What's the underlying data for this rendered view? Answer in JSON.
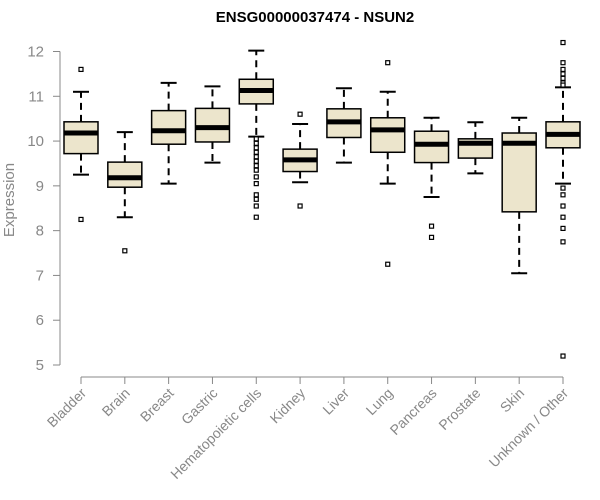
{
  "chart_data": {
    "type": "box",
    "title": "ENSG00000037474 - NSUN2",
    "ylabel": "Expression",
    "xlabel": "",
    "ylim": [
      5,
      12
    ],
    "yticks": [
      5,
      6,
      7,
      8,
      9,
      10,
      11,
      12
    ],
    "categories": [
      "Bladder",
      "Brain",
      "Breast",
      "Gastric",
      "Hematopoietic cells",
      "Kidney",
      "Liver",
      "Lung",
      "Pancreas",
      "Prostate",
      "Skin",
      "Unknown / Other"
    ],
    "series": [
      {
        "category": "Bladder",
        "whisker_low": 9.25,
        "q1": 9.72,
        "median": 10.18,
        "q3": 10.43,
        "whisker_high": 11.1,
        "outliers": [
          11.6,
          8.25
        ]
      },
      {
        "category": "Brain",
        "whisker_low": 8.3,
        "q1": 8.97,
        "median": 9.18,
        "q3": 9.53,
        "whisker_high": 10.2,
        "outliers": [
          7.55
        ]
      },
      {
        "category": "Breast",
        "whisker_low": 9.05,
        "q1": 9.93,
        "median": 10.23,
        "q3": 10.68,
        "whisker_high": 11.3,
        "outliers": []
      },
      {
        "category": "Gastric",
        "whisker_low": 9.52,
        "q1": 9.98,
        "median": 10.3,
        "q3": 10.73,
        "whisker_high": 11.22,
        "outliers": []
      },
      {
        "category": "Hematopoietic cells",
        "whisker_low": 10.1,
        "q1": 10.83,
        "median": 11.13,
        "q3": 11.38,
        "whisker_high": 12.02,
        "outliers": [
          10.05,
          9.95,
          9.85,
          9.75,
          9.65,
          9.55,
          9.45,
          9.35,
          9.2,
          9.05,
          8.8,
          8.7,
          8.55,
          8.3
        ]
      },
      {
        "category": "Kidney",
        "whisker_low": 9.08,
        "q1": 9.32,
        "median": 9.58,
        "q3": 9.82,
        "whisker_high": 10.38,
        "outliers": [
          10.6,
          8.55
        ]
      },
      {
        "category": "Liver",
        "whisker_low": 9.52,
        "q1": 10.08,
        "median": 10.43,
        "q3": 10.72,
        "whisker_high": 11.18,
        "outliers": []
      },
      {
        "category": "Lung",
        "whisker_low": 9.05,
        "q1": 9.75,
        "median": 10.25,
        "q3": 10.52,
        "whisker_high": 11.1,
        "outliers": [
          11.75,
          7.25
        ]
      },
      {
        "category": "Pancreas",
        "whisker_low": 8.75,
        "q1": 9.52,
        "median": 9.93,
        "q3": 10.22,
        "whisker_high": 10.52,
        "outliers": [
          8.1,
          7.85
        ]
      },
      {
        "category": "Prostate",
        "whisker_low": 9.28,
        "q1": 9.62,
        "median": 9.95,
        "q3": 10.05,
        "whisker_high": 10.42,
        "outliers": []
      },
      {
        "category": "Skin",
        "whisker_low": 7.05,
        "q1": 8.42,
        "median": 9.95,
        "q3": 10.18,
        "whisker_high": 10.52,
        "outliers": []
      },
      {
        "category": "Unknown / Other",
        "whisker_low": 9.05,
        "q1": 9.85,
        "median": 10.15,
        "q3": 10.43,
        "whisker_high": 11.2,
        "outliers": [
          12.2,
          11.75,
          11.6,
          11.5,
          11.4,
          11.3,
          11.25,
          8.95,
          8.8,
          8.55,
          8.3,
          8.05,
          7.75,
          5.2
        ]
      }
    ],
    "grid": false,
    "colors": {
      "box_fill": "#ece5cc",
      "box_stroke": "#000000",
      "median": "#000000",
      "axis": "#888888"
    }
  }
}
